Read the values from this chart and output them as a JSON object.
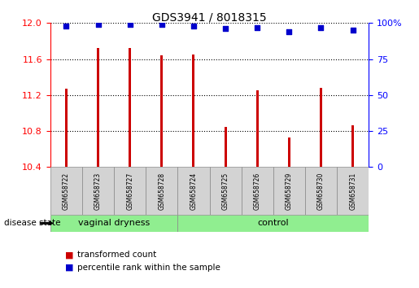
{
  "title": "GDS3941 / 8018315",
  "samples": [
    "GSM658722",
    "GSM658723",
    "GSM658727",
    "GSM658728",
    "GSM658724",
    "GSM658725",
    "GSM658726",
    "GSM658729",
    "GSM658730",
    "GSM658731"
  ],
  "bar_values": [
    11.27,
    11.72,
    11.72,
    11.64,
    11.65,
    10.85,
    11.25,
    10.73,
    11.28,
    10.86
  ],
  "dot_values": [
    98,
    99,
    99,
    99,
    98,
    96,
    97,
    94,
    97,
    95
  ],
  "groups": [
    {
      "label": "vaginal dryness",
      "start": 0,
      "end": 4
    },
    {
      "label": "control",
      "start": 4,
      "end": 10
    }
  ],
  "disease_state_label": "disease state",
  "ylim_left": [
    10.4,
    12.0
  ],
  "ylim_right": [
    0,
    100
  ],
  "yticks_left": [
    10.4,
    10.8,
    11.2,
    11.6,
    12.0
  ],
  "yticks_right": [
    0,
    25,
    50,
    75,
    100
  ],
  "bar_color": "#cc0000",
  "dot_color": "#0000cc",
  "group_bg_color": "#90ee90",
  "sample_bg_color": "#d3d3d3",
  "legend_red_label": "transformed count",
  "legend_blue_label": "percentile rank within the sample",
  "bar_width": 0.08
}
